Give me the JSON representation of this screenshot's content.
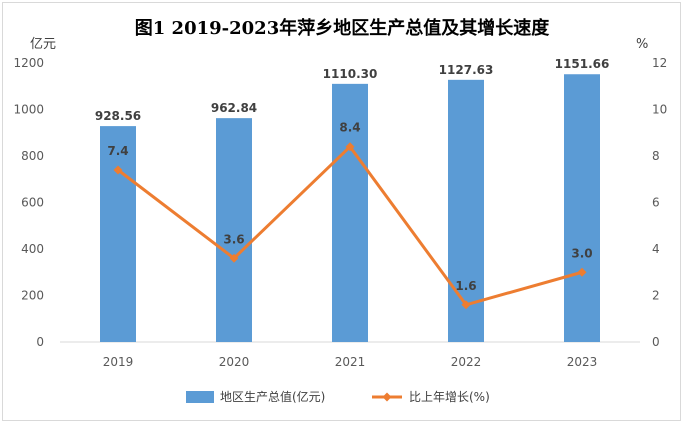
{
  "chart_data": {
    "type": "bar",
    "title": "图1   2019-2023年萍乡地区生产总值及其增长速度",
    "categories": [
      "2019",
      "2020",
      "2021",
      "2022",
      "2023"
    ],
    "y_left": {
      "unit": "亿元",
      "range": [
        0,
        1200
      ],
      "ticks": [
        0,
        200,
        400,
        600,
        800,
        1000,
        1200
      ]
    },
    "y_right": {
      "unit": "%",
      "range": [
        0,
        12
      ],
      "ticks": [
        0,
        2,
        4,
        6,
        8,
        10,
        12
      ]
    },
    "series": [
      {
        "name": "地区生产总值(亿元)",
        "type": "bar",
        "axis": "left",
        "values": [
          928.56,
          962.84,
          1110.3,
          1127.63,
          1151.66
        ],
        "labels": [
          "928.56",
          "962.84",
          "1110.30",
          "1127.63",
          "1151.66"
        ],
        "color": "#5b9bd5"
      },
      {
        "name": "比上年增长(%)",
        "type": "line",
        "axis": "right",
        "values": [
          7.4,
          3.6,
          8.4,
          1.6,
          3.0
        ],
        "labels": [
          "7.4",
          "3.6",
          "8.4",
          "1.6",
          "3.0"
        ],
        "color": "#ed7d31"
      }
    ],
    "grid": false,
    "legend": "bottom"
  }
}
